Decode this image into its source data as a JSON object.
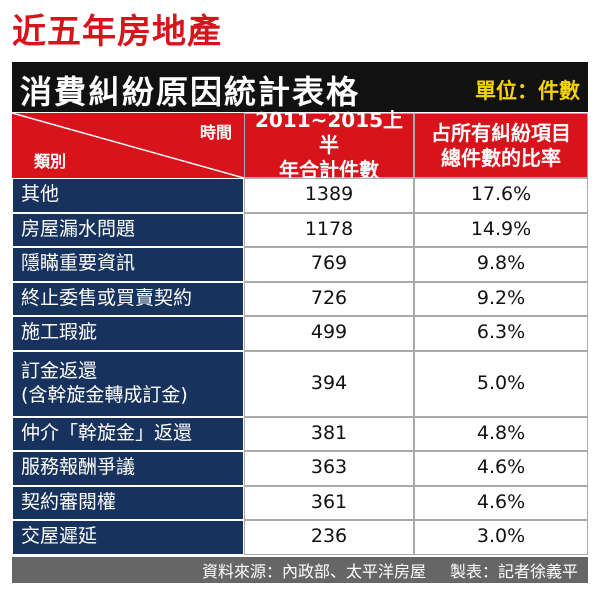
{
  "header": {
    "title": "近五年房地產",
    "subtitle": "消費糾紛原因統計表格",
    "unit": "單位：件數"
  },
  "table": {
    "corner": {
      "top": "時間",
      "bottom": "類別"
    },
    "columns": [
      [
        "2011~2015上半",
        "年合計件數"
      ],
      [
        "占所有糾紛項目",
        "總件數的比率"
      ]
    ],
    "rows": [
      {
        "category": [
          "其他"
        ],
        "count": 1389,
        "share": "17.6%"
      },
      {
        "category": [
          "房屋漏水問題"
        ],
        "count": 1178,
        "share": "14.9%"
      },
      {
        "category": [
          "隱瞞重要資訊"
        ],
        "count": 769,
        "share": "9.8%"
      },
      {
        "category": [
          "終止委售或買賣契約"
        ],
        "count": 726,
        "share": "9.2%"
      },
      {
        "category": [
          "施工瑕疵"
        ],
        "count": 499,
        "share": "6.3%"
      },
      {
        "category": [
          "訂金返還",
          "(含幹旋金轉成訂金)"
        ],
        "count": 394,
        "share": "5.0%"
      },
      {
        "category": [
          "仲介「幹旋金」返還"
        ],
        "count": 381,
        "share": "4.8%"
      },
      {
        "category": [
          "服務報酬爭議"
        ],
        "count": 363,
        "share": "4.6%"
      },
      {
        "category": [
          "契約審閱權"
        ],
        "count": 361,
        "share": "4.6%"
      },
      {
        "category": [
          "交屋遲延"
        ],
        "count": 236,
        "share": "3.0%"
      }
    ]
  },
  "footer": {
    "source": "資料來源：內政部、太平洋房屋",
    "maker": "製表：記者徐義平"
  }
}
